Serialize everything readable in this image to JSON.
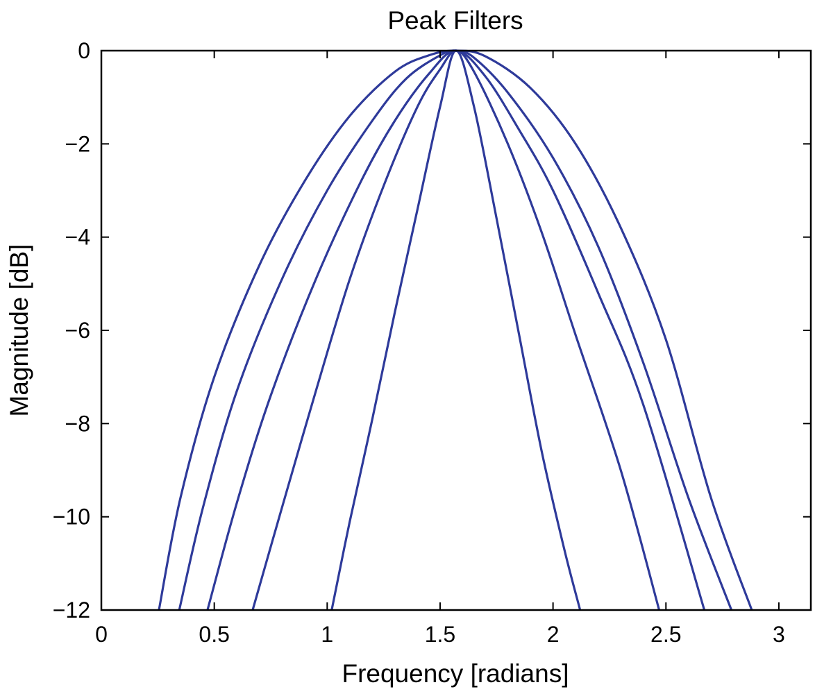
{
  "chart_data": {
    "type": "line",
    "title": "Peak Filters",
    "xlabel": "Frequency [radians]",
    "ylabel": "Magnitude [dB]",
    "xlim": [
      0,
      3.14159
    ],
    "ylim": [
      -12,
      0
    ],
    "xticks": [
      0,
      0.5,
      1,
      1.5,
      2,
      2.5,
      3
    ],
    "xtick_labels": [
      "0",
      "0.5",
      "1",
      "1.5",
      "2",
      "2.5",
      "3"
    ],
    "yticks": [
      0,
      -2,
      -4,
      -6,
      -8,
      -10,
      -12
    ],
    "ytick_labels": [
      "0",
      "−2",
      "−4",
      "−6",
      "−8",
      "−10",
      "−12"
    ],
    "grid": false,
    "line_color": "#2e3a9a",
    "series": [
      {
        "x": [
          0.255,
          0.35,
          0.5,
          0.7,
          0.9,
          1.1,
          1.3,
          1.45,
          1.5708,
          1.7,
          1.9,
          2.1,
          2.3,
          2.5,
          2.7,
          2.88
        ],
        "y": [
          -12,
          -9.6,
          -7.0,
          -4.6,
          -2.8,
          -1.4,
          -0.45,
          -0.1,
          0,
          -0.12,
          -0.8,
          -2.0,
          -3.8,
          -6.2,
          -9.6,
          -12
        ]
      },
      {
        "x": [
          0.345,
          0.45,
          0.6,
          0.8,
          1.0,
          1.2,
          1.35,
          1.5,
          1.5708,
          1.65,
          1.8,
          2.0,
          2.2,
          2.4,
          2.6,
          2.79
        ],
        "y": [
          -12,
          -9.8,
          -7.3,
          -4.9,
          -3.0,
          -1.5,
          -0.6,
          -0.1,
          0,
          -0.15,
          -0.9,
          -2.3,
          -4.2,
          -6.7,
          -9.6,
          -12
        ]
      },
      {
        "x": [
          0.47,
          0.6,
          0.75,
          0.95,
          1.15,
          1.3,
          1.45,
          1.5708,
          1.7,
          1.85,
          2.0,
          2.2,
          2.4,
          2.67
        ],
        "y": [
          -12,
          -9.7,
          -7.4,
          -4.9,
          -2.8,
          -1.5,
          -0.5,
          0,
          -0.55,
          -1.7,
          -3.0,
          -5.2,
          -7.6,
          -12
        ]
      },
      {
        "x": [
          0.67,
          0.8,
          0.95,
          1.1,
          1.25,
          1.4,
          1.5,
          1.5708,
          1.65,
          1.8,
          1.95,
          2.1,
          2.3,
          2.47
        ],
        "y": [
          -12,
          -9.8,
          -7.3,
          -4.9,
          -2.9,
          -1.2,
          -0.4,
          0,
          -0.45,
          -2.0,
          -3.9,
          -6.1,
          -9.0,
          -12
        ]
      },
      {
        "x": [
          1.02,
          1.1,
          1.2,
          1.3,
          1.4,
          1.5,
          1.5708,
          1.65,
          1.75,
          1.85,
          1.95,
          2.05,
          2.12
        ],
        "y": [
          -12,
          -10.1,
          -7.9,
          -5.6,
          -3.4,
          -1.2,
          0,
          -1.2,
          -3.6,
          -6.1,
          -8.6,
          -10.7,
          -12
        ]
      }
    ]
  }
}
